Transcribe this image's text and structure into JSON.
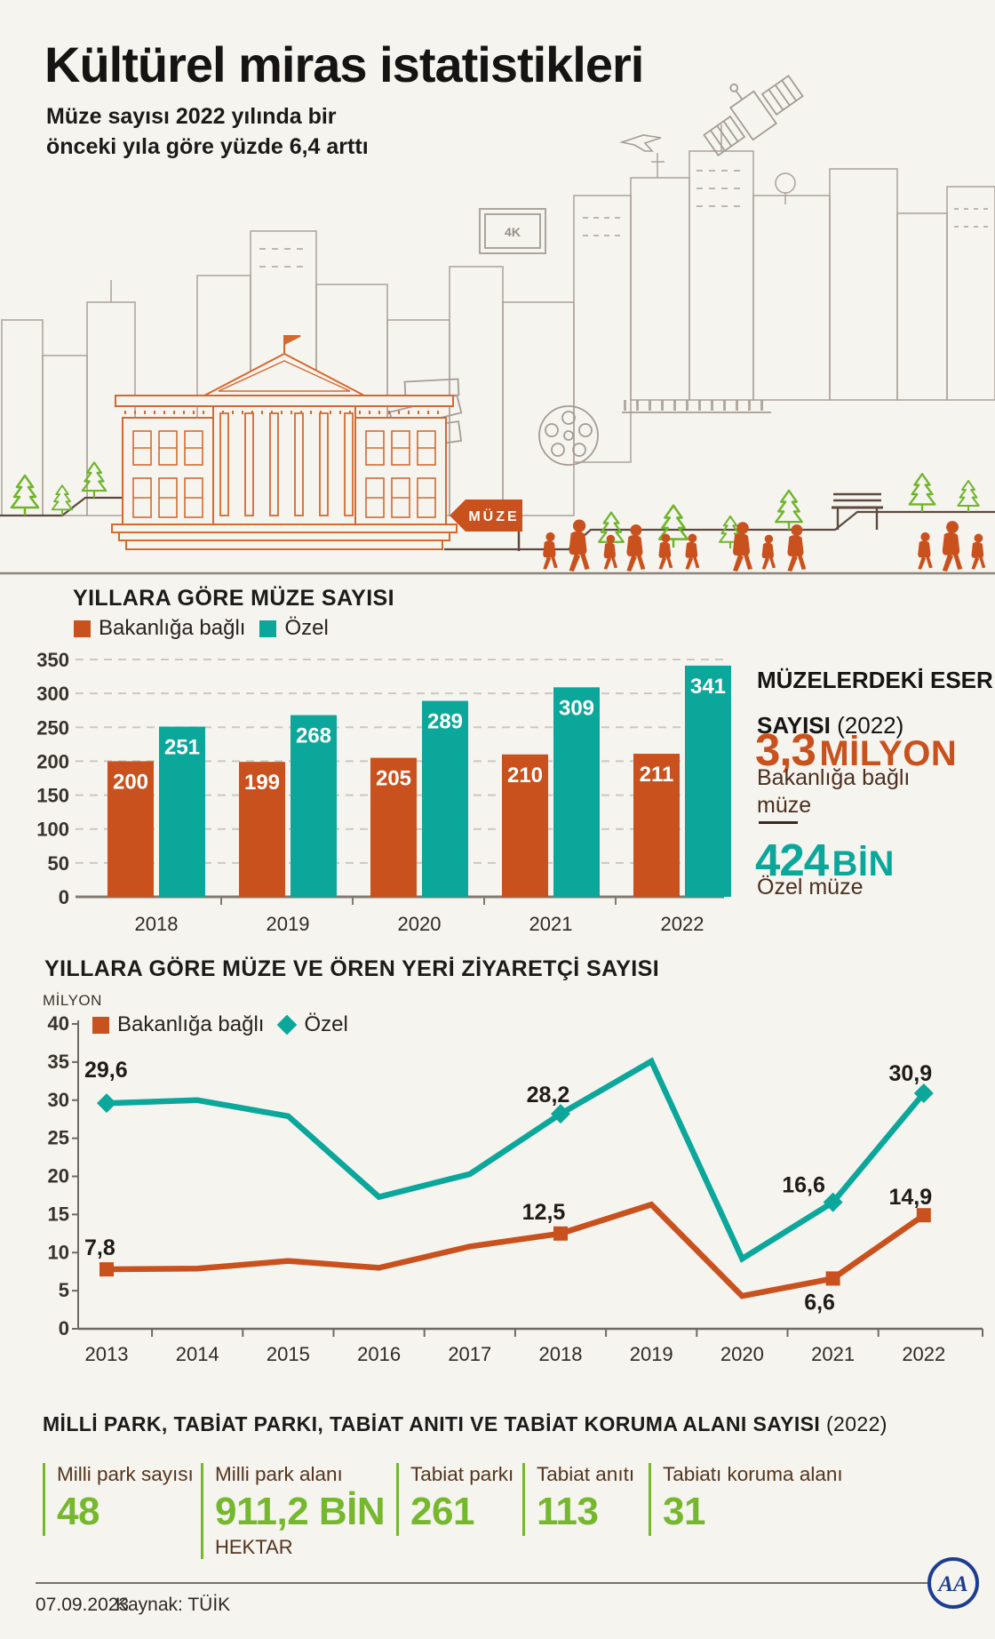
{
  "header": {
    "title": "Kültürel miras istatistikleri",
    "subtitle_line1": "Müze sayısı 2022 yılında bir",
    "subtitle_line2": "önceki yıla göre yüzde 6,4 arttı"
  },
  "illustration": {
    "muze_sign": "MÜZE",
    "tv_label": "4K"
  },
  "colors": {
    "orange": "#c8511d",
    "teal": "#0ba79b",
    "green": "#76b82d",
    "brown": "#4c2f1f",
    "background": "#f6f4ef"
  },
  "chart_data": [
    {
      "type": "bar",
      "title": "YILLARA GÖRE MÜZE SAYISI",
      "categories": [
        "2018",
        "2019",
        "2020",
        "2021",
        "2022"
      ],
      "series": [
        {
          "name": "Bakanlığa bağlı",
          "color": "#c8511d",
          "values": [
            200,
            199,
            205,
            210,
            211
          ]
        },
        {
          "name": "Özel",
          "color": "#0ba79b",
          "values": [
            251,
            268,
            289,
            309,
            341
          ]
        }
      ],
      "ylim": [
        0,
        350
      ],
      "ytick_step": 50,
      "grid": "dashed-horizontal",
      "legend_position": "top-left"
    },
    {
      "type": "line",
      "title": "YILLARA GÖRE MÜZE VE ÖREN YERİ ZİYARETÇİ SAYISI",
      "unit_label": "MİLYON",
      "x": [
        "2013",
        "2014",
        "2015",
        "2016",
        "2017",
        "2018",
        "2019",
        "2020",
        "2021",
        "2022"
      ],
      "series": [
        {
          "name": "Bakanlığa bağlı",
          "color": "#c8511d",
          "marker": "square",
          "values": [
            7.8,
            7.9,
            8.9,
            8.0,
            10.8,
            12.5,
            16.3,
            4.3,
            6.6,
            14.9
          ],
          "point_labels": [
            {
              "i": 0,
              "text": "7,8",
              "dx": -25,
              "dy": -16,
              "anchor": "start"
            },
            {
              "i": 5,
              "text": "12,5",
              "dx": -19,
              "dy": -16,
              "anchor": "middle"
            },
            {
              "i": 8,
              "text": "6,6",
              "dx": -15,
              "dy": 35,
              "anchor": "middle"
            },
            {
              "i": 9,
              "text": "14,9",
              "dx": -15,
              "dy": -12,
              "anchor": "middle"
            }
          ]
        },
        {
          "name": "Özel",
          "color": "#0ba79b",
          "marker": "diamond",
          "values": [
            29.6,
            30.0,
            27.9,
            17.3,
            20.3,
            28.2,
            35.1,
            9.2,
            16.6,
            30.9
          ],
          "point_labels": [
            {
              "i": 0,
              "text": "29,6",
              "dx": -25,
              "dy": -29,
              "anchor": "start"
            },
            {
              "i": 5,
              "text": "28,2",
              "dx": -14,
              "dy": -13,
              "anchor": "middle"
            },
            {
              "i": 8,
              "text": "16,6",
              "dx": -33,
              "dy": -11,
              "anchor": "middle"
            },
            {
              "i": 9,
              "text": "30,9",
              "dx": -15,
              "dy": -14,
              "anchor": "middle"
            }
          ]
        }
      ],
      "ylim": [
        0,
        40
      ],
      "ytick_step": 5,
      "grid": "off",
      "legend_position": "top-left"
    }
  ],
  "museum_works_panel": {
    "title_line1": "MÜZELERDEKİ ESER",
    "title_line2_bold": "SAYISI",
    "title_line2_year": "(2022)",
    "stat1_value": "3,3",
    "stat1_unit": "MİLYON",
    "stat1_label_line1": "Bakanlığa bağlı",
    "stat1_label_line2": "müze",
    "stat2_value": "424",
    "stat2_unit": "BİN",
    "stat2_label": "Özel müze"
  },
  "parks_section": {
    "title": "MİLLİ PARK, TABİAT PARKI, TABİAT ANITI VE TABİAT KORUMA ALANI SAYISI",
    "title_year": "(2022)",
    "items": [
      {
        "label": "Milli park sayısı",
        "value": "48",
        "unit": ""
      },
      {
        "label": "Milli park alanı",
        "value": "911,2 BİN",
        "unit": "HEKTAR"
      },
      {
        "label": "Tabiat parkı",
        "value": "261",
        "unit": ""
      },
      {
        "label": "Tabiat anıtı",
        "value": "113",
        "unit": ""
      },
      {
        "label": "Tabiatı koruma alanı",
        "value": "31",
        "unit": ""
      }
    ]
  },
  "footer": {
    "date": "07.09.2023",
    "source": "Kaynak: TÜİK",
    "logo_text": "AA"
  }
}
